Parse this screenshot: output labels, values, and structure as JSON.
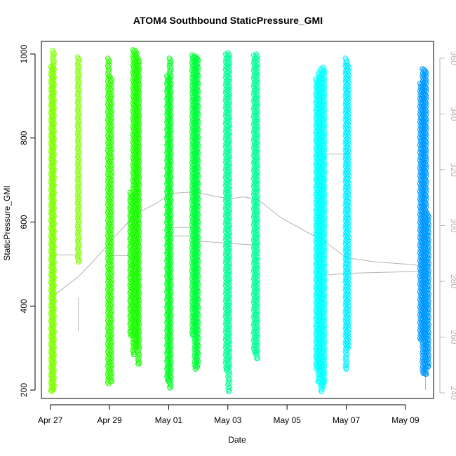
{
  "chart_data": {
    "type": "scatter",
    "title": "ATOM4 Southbound StaticPressure_GMI",
    "xlabel": "Date",
    "ylabel": "StaticPressure_GMI",
    "ylim": [
      180,
      1030
    ],
    "y_ticks": [
      200,
      400,
      600,
      800,
      1000
    ],
    "y2lim": [
      238,
      366
    ],
    "y2_ticks": [
      240,
      260,
      280,
      300,
      320,
      340,
      360
    ],
    "xlim_days": [
      -0.3,
      12.95
    ],
    "x_ticks": [
      {
        "label": "Apr 27",
        "day": 0
      },
      {
        "label": "Apr 29",
        "day": 2
      },
      {
        "label": "May 01",
        "day": 4
      },
      {
        "label": "May 03",
        "day": 6
      },
      {
        "label": "May 05",
        "day": 8
      },
      {
        "label": "May 07",
        "day": 10
      },
      {
        "label": "May 09",
        "day": 12
      }
    ],
    "profiles": [
      {
        "day": 0.05,
        "ymin": 197,
        "ymax": 970,
        "color": "#80ff00"
      },
      {
        "day": 0.1,
        "ymin": 200,
        "ymax": 1008,
        "color": "#80ff00"
      },
      {
        "day": 0.95,
        "ymin": 505,
        "ymax": 993,
        "color": "#80ff00"
      },
      {
        "day": 1.97,
        "ymin": 215,
        "ymax": 990,
        "color": "#2eff00"
      },
      {
        "day": 2.05,
        "ymin": 220,
        "ymax": 945,
        "color": "#2eff00"
      },
      {
        "day": 2.72,
        "ymin": 330,
        "ymax": 670,
        "color": "#1aff00"
      },
      {
        "day": 2.82,
        "ymin": 285,
        "ymax": 1010,
        "color": "#1aff00"
      },
      {
        "day": 2.9,
        "ymin": 300,
        "ymax": 1008,
        "color": "#1aff00"
      },
      {
        "day": 2.98,
        "ymin": 262,
        "ymax": 990,
        "color": "#1aff00"
      },
      {
        "day": 3.97,
        "ymin": 222,
        "ymax": 948,
        "color": "#00ff22"
      },
      {
        "day": 4.05,
        "ymin": 205,
        "ymax": 990,
        "color": "#00ff22"
      },
      {
        "day": 4.82,
        "ymin": 330,
        "ymax": 998,
        "color": "#00ff3c"
      },
      {
        "day": 4.9,
        "ymin": 250,
        "ymax": 995,
        "color": "#00ff3c"
      },
      {
        "day": 4.97,
        "ymin": 255,
        "ymax": 993,
        "color": "#00ff3c"
      },
      {
        "day": 5.95,
        "ymin": 248,
        "ymax": 1000,
        "color": "#00ff96"
      },
      {
        "day": 6.03,
        "ymin": 197,
        "ymax": 1003,
        "color": "#00ff96"
      },
      {
        "day": 6.9,
        "ymin": 290,
        "ymax": 997,
        "color": "#00ff99"
      },
      {
        "day": 6.98,
        "ymin": 275,
        "ymax": 1000,
        "color": "#00ff99"
      },
      {
        "day": 9.0,
        "ymin": 250,
        "ymax": 940,
        "color": "#00ffff"
      },
      {
        "day": 9.08,
        "ymin": 220,
        "ymax": 955,
        "color": "#00ffff"
      },
      {
        "day": 9.16,
        "ymin": 197,
        "ymax": 965,
        "color": "#00ffff"
      },
      {
        "day": 9.24,
        "ymin": 210,
        "ymax": 968,
        "color": "#00ffff"
      },
      {
        "day": 10.0,
        "ymin": 250,
        "ymax": 990,
        "color": "#00f0ff"
      },
      {
        "day": 10.06,
        "ymin": 300,
        "ymax": 975,
        "color": "#00f0ff"
      },
      {
        "day": 12.52,
        "ymin": 320,
        "ymax": 930,
        "color": "#0099ff"
      },
      {
        "day": 12.6,
        "ymin": 240,
        "ymax": 965,
        "color": "#0099ff"
      },
      {
        "day": 12.68,
        "ymin": 238,
        "ymax": 962,
        "color": "#0099ff"
      },
      {
        "day": 12.76,
        "ymin": 255,
        "ymax": 620,
        "color": "#0099ff"
      }
    ],
    "grey_line": {
      "color": "#b3b3b3",
      "points": [
        [
          0.1,
          410
        ],
        [
          0.12,
          425
        ],
        [
          0.95,
          470
        ],
        [
          1.5,
          510
        ],
        [
          2.05,
          555
        ],
        [
          2.9,
          620
        ],
        [
          3.6,
          645
        ],
        [
          4.05,
          668
        ],
        [
          4.9,
          672
        ],
        [
          5.5,
          662
        ],
        [
          6.05,
          655
        ],
        [
          6.5,
          660
        ],
        [
          7.0,
          655
        ],
        [
          7.8,
          610
        ],
        [
          8.7,
          575
        ],
        [
          9.24,
          555
        ],
        [
          10.0,
          515
        ],
        [
          11.0,
          505
        ],
        [
          12.0,
          500
        ],
        [
          12.68,
          495
        ]
      ]
    },
    "grey_segments": [
      {
        "color": "#b3b3b3",
        "points": [
          [
            0.1,
            522
          ],
          [
            0.95,
            522
          ]
        ]
      },
      {
        "color": "#b3b3b3",
        "points": [
          [
            0.95,
            340
          ],
          [
            0.95,
            420
          ]
        ]
      },
      {
        "color": "#b3b3b3",
        "points": [
          [
            2.05,
            520
          ],
          [
            2.9,
            520
          ]
        ]
      },
      {
        "color": "#b3b3b3",
        "points": [
          [
            4.05,
            587
          ],
          [
            4.9,
            587
          ]
        ]
      },
      {
        "color": "#b3b3b3",
        "points": [
          [
            4.05,
            567
          ],
          [
            4.9,
            567
          ]
        ]
      },
      {
        "color": "#b3b3b3",
        "points": [
          [
            4.9,
            555
          ],
          [
            6.9,
            545
          ]
        ]
      },
      {
        "color": "#b3b3b3",
        "points": [
          [
            9.24,
            762
          ],
          [
            10.0,
            762
          ]
        ]
      },
      {
        "color": "#b3b3b3",
        "points": [
          [
            9.24,
            473
          ],
          [
            10.0,
            478
          ]
        ]
      },
      {
        "color": "#b3b3b3",
        "points": [
          [
            10.0,
            478
          ],
          [
            12.68,
            483
          ]
        ]
      },
      {
        "color": "#b3b3b3",
        "points": [
          [
            12.68,
            200
          ],
          [
            12.68,
            245
          ]
        ]
      }
    ]
  }
}
